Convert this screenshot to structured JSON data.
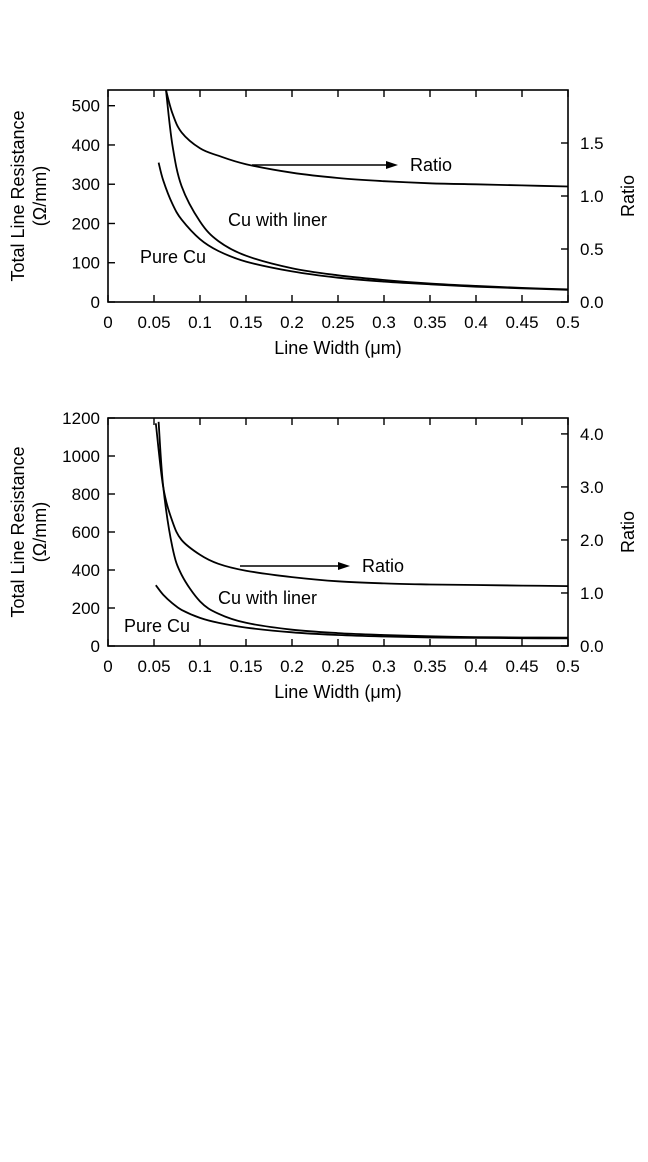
{
  "chart_data": [
    {
      "type": "line",
      "xlabel": "Line Width (μm)",
      "ylabel": [
        "Total Line Resistance",
        "(Ω/mm)"
      ],
      "y2label": "Ratio",
      "xlim": [
        0,
        0.5
      ],
      "ylim": [
        0,
        540
      ],
      "y2lim": [
        0,
        2.0
      ],
      "xticks": [
        "0",
        "0.05",
        "0.1",
        "0.15",
        "0.2",
        "0.25",
        "0.3",
        "0.35",
        "0.4",
        "0.45",
        "0.5"
      ],
      "yticks": [
        "0",
        "100",
        "200",
        "300",
        "400",
        "500"
      ],
      "y2ticks": [
        "0.0",
        "0.5",
        "1.0",
        "1.5"
      ],
      "grid": false,
      "annotations": [
        "Ratio",
        "Cu with liner",
        "Pure Cu"
      ],
      "series": [
        {
          "name": "Pure Cu",
          "axis": "left",
          "x": [
            0.055,
            0.06,
            0.07,
            0.08,
            0.1,
            0.12,
            0.15,
            0.2,
            0.25,
            0.3,
            0.35,
            0.4,
            0.45,
            0.5
          ],
          "values": [
            355,
            310,
            250,
            210,
            160,
            130,
            103,
            78,
            62,
            52,
            45,
            39,
            35,
            31
          ]
        },
        {
          "name": "Cu with liner",
          "axis": "left",
          "x": [
            0.063,
            0.07,
            0.08,
            0.1,
            0.12,
            0.15,
            0.2,
            0.25,
            0.3,
            0.35,
            0.4,
            0.45,
            0.5
          ],
          "values": [
            540,
            400,
            295,
            205,
            155,
            118,
            86,
            68,
            56,
            47,
            41,
            36,
            32
          ]
        },
        {
          "name": "Ratio",
          "axis": "right",
          "x": [
            0.063,
            0.07,
            0.08,
            0.1,
            0.12,
            0.15,
            0.2,
            0.25,
            0.3,
            0.35,
            0.4,
            0.45,
            0.5
          ],
          "values": [
            2.0,
            1.78,
            1.6,
            1.45,
            1.38,
            1.3,
            1.22,
            1.17,
            1.14,
            1.12,
            1.11,
            1.1,
            1.09
          ]
        }
      ]
    },
    {
      "type": "line",
      "xlabel": "Line Width (μm)",
      "ylabel": [
        "Total Line Resistance",
        "(Ω/mm)"
      ],
      "y2label": "Ratio",
      "xlim": [
        0,
        0.5
      ],
      "ylim": [
        0,
        1200
      ],
      "y2lim": [
        0,
        4.3
      ],
      "xticks": [
        "0",
        "0.05",
        "0.1",
        "0.15",
        "0.2",
        "0.25",
        "0.3",
        "0.35",
        "0.4",
        "0.45",
        "0.5"
      ],
      "yticks": [
        "0",
        "200",
        "400",
        "600",
        "800",
        "1000",
        "1200"
      ],
      "y2ticks": [
        "0.0",
        "1.0",
        "2.0",
        "3.0",
        "4.0"
      ],
      "grid": false,
      "annotations": [
        "Ratio",
        "Cu with liner",
        "Pure Cu"
      ],
      "series": [
        {
          "name": "Pure Cu",
          "axis": "left",
          "x": [
            0.052,
            0.06,
            0.07,
            0.08,
            0.1,
            0.12,
            0.15,
            0.2,
            0.25,
            0.3,
            0.35,
            0.4,
            0.45,
            0.5
          ],
          "values": [
            320,
            270,
            225,
            190,
            148,
            122,
            97,
            72,
            58,
            50,
            45,
            43,
            41,
            40
          ]
        },
        {
          "name": "Cu with liner",
          "axis": "left",
          "x": [
            0.055,
            0.06,
            0.07,
            0.08,
            0.1,
            0.12,
            0.15,
            0.2,
            0.25,
            0.3,
            0.35,
            0.4,
            0.45,
            0.5
          ],
          "values": [
            1180,
            840,
            520,
            375,
            235,
            170,
            122,
            86,
            68,
            58,
            51,
            47,
            45,
            44
          ]
        },
        {
          "name": "Ratio",
          "axis": "right",
          "x": [
            0.052,
            0.06,
            0.07,
            0.08,
            0.1,
            0.12,
            0.15,
            0.2,
            0.25,
            0.3,
            0.35,
            0.4,
            0.45,
            0.5
          ],
          "values": [
            4.2,
            3.0,
            2.35,
            2.0,
            1.72,
            1.55,
            1.42,
            1.3,
            1.22,
            1.18,
            1.16,
            1.15,
            1.14,
            1.13
          ]
        }
      ]
    }
  ]
}
